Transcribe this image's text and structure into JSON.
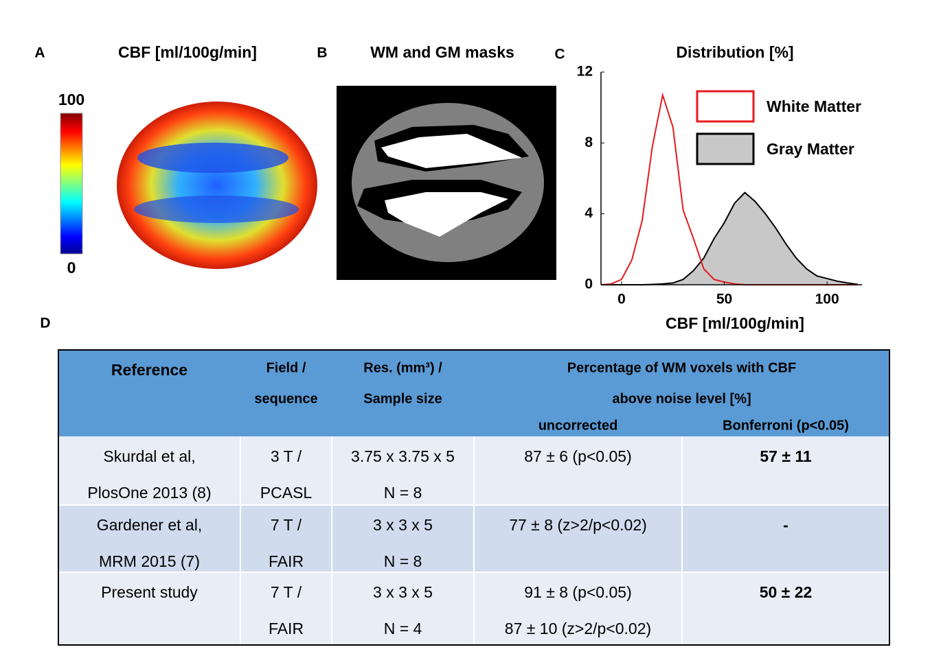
{
  "panels": {
    "a": {
      "label": "A",
      "title": "CBF [ml/100g/min]",
      "colorbar_max": "100",
      "colorbar_min": "0"
    },
    "b": {
      "label": "B",
      "title": "WM and GM masks"
    },
    "c": {
      "label": "C"
    },
    "d": {
      "label": "D"
    }
  },
  "chart_data": {
    "type": "line",
    "title": "Distribution [%]",
    "xlabel": "CBF [ml/100g/min]",
    "x": [
      -10,
      -5,
      0,
      5,
      10,
      15,
      20,
      25,
      30,
      35,
      40,
      45,
      50,
      55,
      60,
      65,
      70,
      75,
      80,
      85,
      90,
      95,
      100,
      105,
      110,
      115
    ],
    "series": [
      {
        "name": "White Matter",
        "color": "#e8191c",
        "values": [
          0,
          0.05,
          0.3,
          1.4,
          3.6,
          7.8,
          10.7,
          8.9,
          4.2,
          2.6,
          0.9,
          0.3,
          0.15,
          0.05,
          0,
          0,
          0,
          0,
          0,
          0,
          0,
          0,
          0,
          0,
          0,
          0
        ]
      },
      {
        "name": "Gray Matter",
        "color": "#000000",
        "fill": "#c8c8c8",
        "values": [
          0,
          0,
          0,
          0,
          0,
          0.02,
          0.05,
          0.1,
          0.3,
          0.8,
          1.5,
          2.6,
          3.5,
          4.6,
          5.2,
          4.7,
          4.0,
          3.2,
          2.3,
          1.5,
          0.9,
          0.5,
          0.35,
          0.2,
          0.1,
          0.02
        ]
      }
    ],
    "xlim": [
      -10,
      117
    ],
    "ylim": [
      0,
      12
    ],
    "xticks": [
      0,
      50,
      100
    ],
    "yticks": [
      0,
      4,
      8,
      12
    ]
  },
  "table": {
    "header": {
      "reference": "Reference",
      "field": [
        "Field /",
        "sequence"
      ],
      "res": [
        "Res. (mm³) /",
        "Sample size"
      ],
      "percentage": [
        "Percentage of WM voxels with CBF",
        "above noise level [%]"
      ],
      "uncorrected": "uncorrected",
      "bonferroni": "Bonferroni (p<0.05)"
    },
    "rows": [
      [
        [
          "Skurdal et al,",
          "PlosOne 2013 (8)"
        ],
        [
          "3 T /",
          "PCASL"
        ],
        [
          "3.75 x 3.75 x 5",
          "N = 8"
        ],
        [
          "87 ± 6 (p<0.05)"
        ],
        [
          "57 ± 11"
        ]
      ],
      [
        [
          "Gardener et al,",
          "MRM 2015 (7)"
        ],
        [
          "7 T /",
          "FAIR"
        ],
        [
          "3 x 3 x 5",
          "N = 8"
        ],
        [
          "77 ± 8 (z>2/p<0.02)"
        ],
        [
          "-"
        ]
      ],
      [
        [
          "Present study"
        ],
        [
          "7 T /",
          "FAIR"
        ],
        [
          "3 x 3 x 5",
          "N = 4"
        ],
        [
          "91 ± 8 (p<0.05)",
          "87 ± 10 (z>2/p<0.02)"
        ],
        [
          "50 ± 22"
        ]
      ]
    ]
  }
}
